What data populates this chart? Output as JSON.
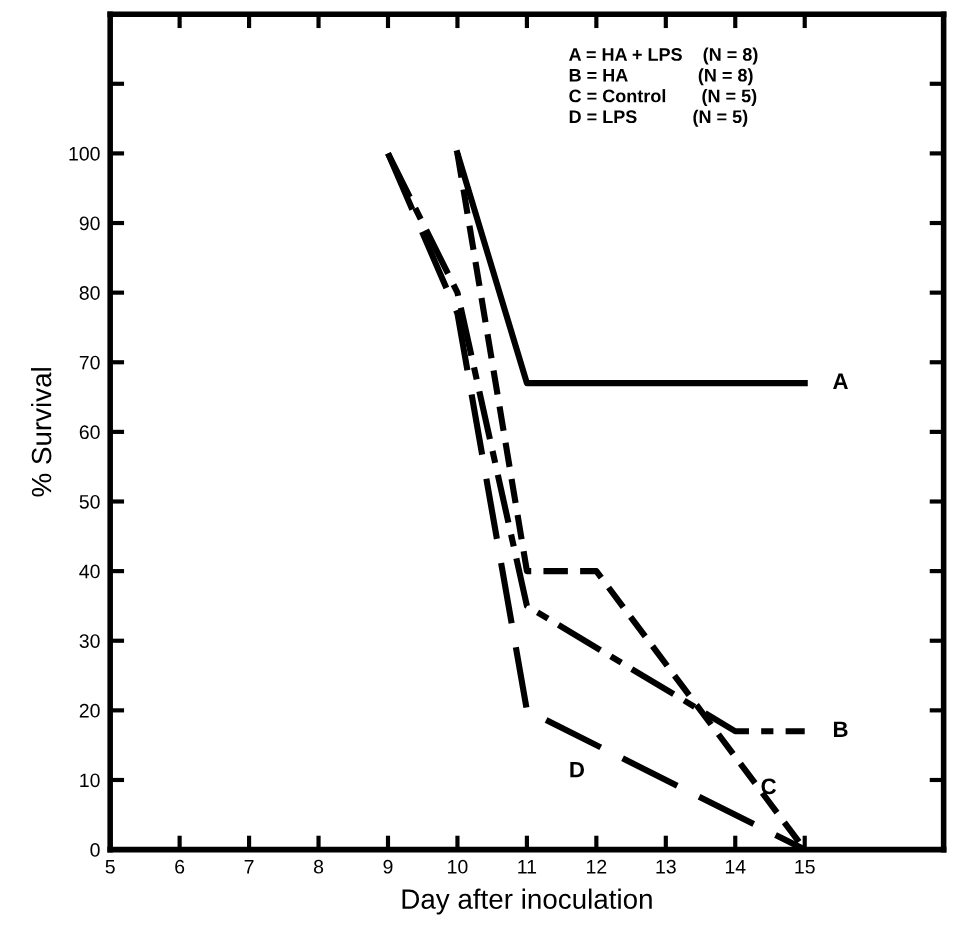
{
  "chart_data": {
    "type": "line",
    "xlabel": "Day after inoculation",
    "ylabel": "% Survival",
    "xlim": [
      5,
      17
    ],
    "xticks": [
      5,
      6,
      7,
      8,
      9,
      10,
      11,
      12,
      13,
      14,
      15
    ],
    "ylim": [
      0,
      120
    ],
    "yticks": [
      0,
      10,
      20,
      30,
      40,
      50,
      60,
      70,
      80,
      90,
      100,
      {
        "value": 110,
        "label": null
      },
      {
        "value": 120,
        "label": null
      }
    ],
    "grid": false,
    "legend": false,
    "marker": "none",
    "series": [
      {
        "name": "A",
        "color": "#000000",
        "line_style": "solid",
        "x": [
          10,
          11,
          15
        ],
        "values": [
          100,
          67,
          67
        ]
      },
      {
        "name": "B",
        "color": "#000000",
        "line_style": "dashdot",
        "x": [
          9,
          10,
          11,
          14,
          15
        ],
        "values": [
          100,
          80,
          35,
          17,
          17
        ]
      },
      {
        "name": "C",
        "color": "#000000",
        "line_style": "dashed",
        "x": [
          10,
          11,
          12,
          15
        ],
        "values": [
          100,
          40,
          40,
          0
        ]
      },
      {
        "name": "D",
        "color": "#000000",
        "line_style": "longdash",
        "x": [
          9,
          10,
          11,
          15
        ],
        "values": [
          100,
          77,
          20,
          0
        ]
      }
    ],
    "annotations": [
      "A = HA + LPS    (N = 8)\nB = HA              (N = 8)\nC = Control       (N = 5)\nD = LPS           (N = 5)"
    ]
  }
}
